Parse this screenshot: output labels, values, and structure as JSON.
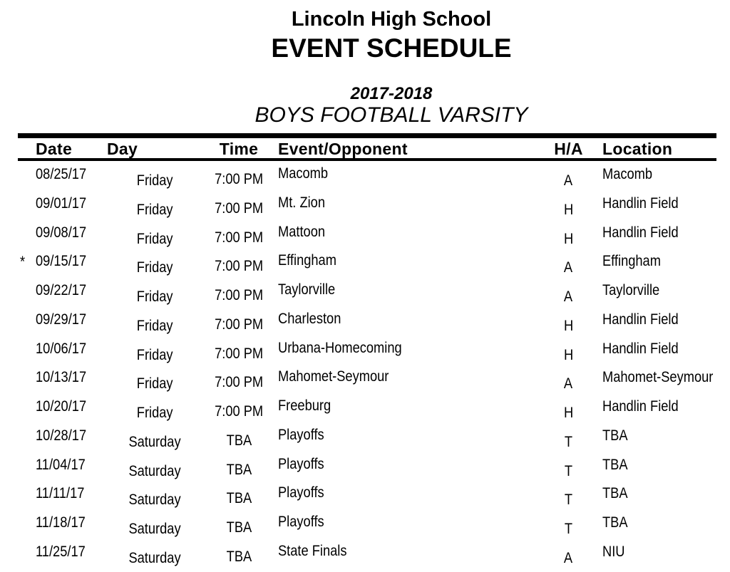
{
  "header": {
    "school": "Lincoln High School",
    "title": "EVENT SCHEDULE",
    "season": "2017-2018",
    "team": "BOYS FOOTBALL VARSITY"
  },
  "table": {
    "columns": [
      "Date",
      "Day",
      "Time",
      "Event/Opponent",
      "H/A",
      "Location"
    ],
    "rows": [
      {
        "star": "",
        "date": "08/25/17",
        "day": "Friday",
        "time": "7:00 PM",
        "event": "Macomb",
        "ha": "A",
        "location": "Macomb"
      },
      {
        "star": "",
        "date": "09/01/17",
        "day": "Friday",
        "time": "7:00 PM",
        "event": "Mt. Zion",
        "ha": "H",
        "location": "Handlin Field"
      },
      {
        "star": "",
        "date": "09/08/17",
        "day": "Friday",
        "time": "7:00 PM",
        "event": "Mattoon",
        "ha": "H",
        "location": "Handlin Field"
      },
      {
        "star": "*",
        "date": "09/15/17",
        "day": "Friday",
        "time": "7:00 PM",
        "event": "Effingham",
        "ha": "A",
        "location": "Effingham"
      },
      {
        "star": "",
        "date": "09/22/17",
        "day": "Friday",
        "time": "7:00 PM",
        "event": "Taylorville",
        "ha": "A",
        "location": "Taylorville"
      },
      {
        "star": "",
        "date": "09/29/17",
        "day": "Friday",
        "time": "7:00 PM",
        "event": "Charleston",
        "ha": "H",
        "location": "Handlin Field"
      },
      {
        "star": "",
        "date": "10/06/17",
        "day": "Friday",
        "time": "7:00 PM",
        "event": "Urbana-Homecoming",
        "ha": "H",
        "location": "Handlin Field"
      },
      {
        "star": "",
        "date": "10/13/17",
        "day": "Friday",
        "time": "7:00 PM",
        "event": "Mahomet-Seymour",
        "ha": "A",
        "location": "Mahomet-Seymour"
      },
      {
        "star": "",
        "date": "10/20/17",
        "day": "Friday",
        "time": "7:00 PM",
        "event": "Freeburg",
        "ha": "H",
        "location": "Handlin Field"
      },
      {
        "star": "",
        "date": "10/28/17",
        "day": "Saturday",
        "time": "TBA",
        "event": "Playoffs",
        "ha": "T",
        "location": "TBA"
      },
      {
        "star": "",
        "date": "11/04/17",
        "day": "Saturday",
        "time": "TBA",
        "event": "Playoffs",
        "ha": "T",
        "location": "TBA"
      },
      {
        "star": "",
        "date": "11/11/17",
        "day": "Saturday",
        "time": "TBA",
        "event": "Playoffs",
        "ha": "T",
        "location": "TBA"
      },
      {
        "star": "",
        "date": "11/18/17",
        "day": "Saturday",
        "time": "TBA",
        "event": "Playoffs",
        "ha": "T",
        "location": "TBA"
      },
      {
        "star": "",
        "date": "11/25/17",
        "day": "Saturday",
        "time": "TBA",
        "event": "State Finals",
        "ha": "A",
        "location": "NIU"
      }
    ]
  },
  "colors": {
    "background": "#ffffff",
    "text": "#000000",
    "rule": "#000000"
  }
}
